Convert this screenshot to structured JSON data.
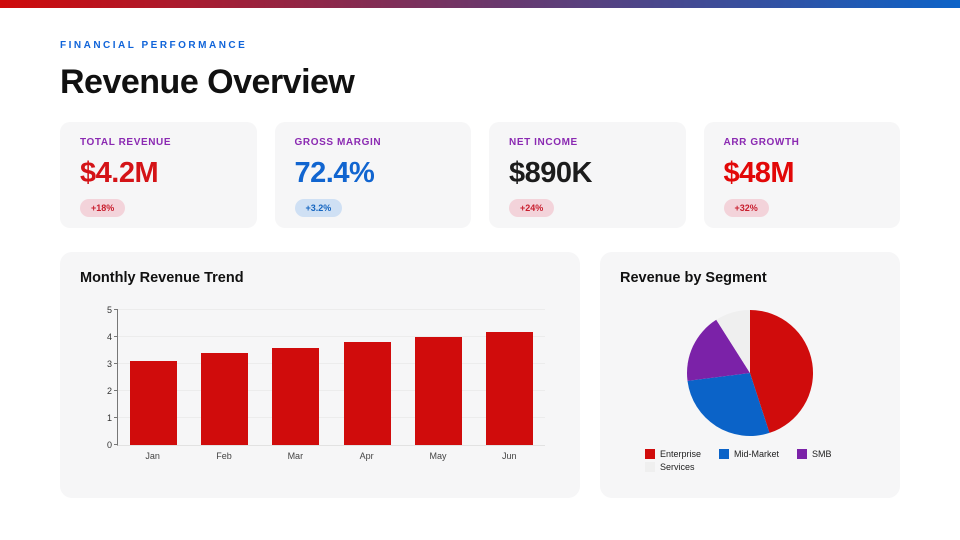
{
  "top_bar": {
    "gradient_from": "#cf0a0a",
    "gradient_to": "#0c63c8"
  },
  "header": {
    "eyebrow": "FINANCIAL PERFORMANCE",
    "eyebrow_color": "#1064d9",
    "title": "Revenue Overview"
  },
  "kpi_label_color": "#8b2ab2",
  "card_bg": "#f6f6f7",
  "kpis": [
    {
      "label": "TOTAL REVENUE",
      "value": "$4.2M",
      "value_color": "#d41317",
      "badge": "+18%",
      "badge_color": "#c81e2e",
      "badge_bg": "#f3d3da"
    },
    {
      "label": "GROSS MARGIN",
      "value": "72.4%",
      "value_color": "#1165d0",
      "badge": "+3.2%",
      "badge_color": "#1565c0",
      "badge_bg": "#cfe0f4"
    },
    {
      "label": "NET INCOME",
      "value": "$890K",
      "value_color": "#1c1c1c",
      "badge": "+24%",
      "badge_color": "#c81e2e",
      "badge_bg": "#f3d3da"
    },
    {
      "label": "ARR GROWTH",
      "value": "$48M",
      "value_color": "#e20808",
      "badge": "+32%",
      "badge_color": "#c81e2e",
      "badge_bg": "#f3d3da"
    }
  ],
  "chart_data": [
    {
      "type": "bar",
      "title": "Monthly Revenue Trend",
      "categories": [
        "Jan",
        "Feb",
        "Mar",
        "Apr",
        "May",
        "Jun"
      ],
      "values": [
        3.1,
        3.4,
        3.6,
        3.8,
        4.0,
        4.2
      ],
      "bar_color": "#d00c0c",
      "xlabel": "",
      "ylabel": "",
      "ylim": [
        0,
        5
      ],
      "ytick_step": 1,
      "grid": true
    },
    {
      "type": "pie",
      "title": "Revenue by Segment",
      "slices": [
        {
          "label": "Enterprise",
          "value": 45,
          "color": "#d00c0c"
        },
        {
          "label": "Mid-Market",
          "value": 28,
          "color": "#0b63c8"
        },
        {
          "label": "SMB",
          "value": 18,
          "color": "#7b22a8"
        },
        {
          "label": "Services",
          "value": 9,
          "color": "#efefef"
        }
      ],
      "start_angle_deg": 0,
      "direction": "clockwise",
      "legend_position": "bottom"
    }
  ]
}
